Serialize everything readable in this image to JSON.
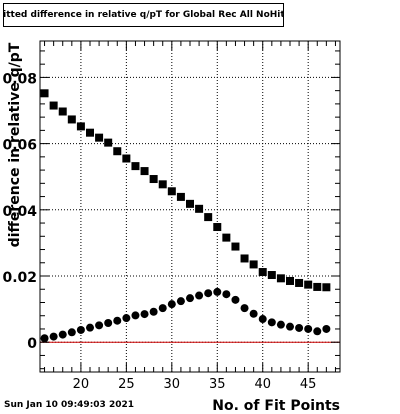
{
  "header": {
    "title": "Fitted difference in relative q/pT  for Global Rec All NoHits"
  },
  "footer": {
    "timestamp": "Sun Jan 10 09:49:03 2021"
  },
  "colors": {
    "axis": "#000000",
    "zero_line": "#cc0000",
    "markers": "#000000",
    "grid": "#000000"
  },
  "chart_data": {
    "type": "scatter",
    "title": "Fitted difference in relative q/pT  for Global Rec All NoHits",
    "xlabel": "No. of Fit Points",
    "ylabel": "difference in relative q/pT",
    "xlim": [
      15.5,
      48.5
    ],
    "ylim": [
      -0.009,
      0.091
    ],
    "x_ticks": [
      20,
      25,
      30,
      35,
      40,
      45
    ],
    "y_ticks": [
      0,
      0.02,
      0.04,
      0.06,
      0.08
    ],
    "y_tick_labels": [
      "0",
      "0.02",
      "0.04",
      "0.06",
      "0.08"
    ],
    "grid": true,
    "reference_line_y": 0,
    "series": [
      {
        "marker": "square",
        "x": [
          16,
          17,
          18,
          19,
          20,
          21,
          22,
          23,
          24,
          25,
          26,
          27,
          28,
          29,
          30,
          31,
          32,
          33,
          34,
          35,
          36,
          37,
          38,
          39,
          40,
          41,
          42,
          43,
          44,
          45,
          46,
          47
        ],
        "values": [
          0.0752,
          0.0715,
          0.0697,
          0.0673,
          0.0652,
          0.0633,
          0.0618,
          0.0603,
          0.0577,
          0.0555,
          0.0532,
          0.0517,
          0.0493,
          0.0477,
          0.0456,
          0.0439,
          0.0418,
          0.0403,
          0.0378,
          0.0348,
          0.0316,
          0.0289,
          0.0253,
          0.0235,
          0.0212,
          0.0203,
          0.0193,
          0.0185,
          0.0179,
          0.0174,
          0.0167,
          0.0166
        ]
      },
      {
        "marker": "circle",
        "x": [
          16,
          17,
          18,
          19,
          20,
          21,
          22,
          23,
          24,
          25,
          26,
          27,
          28,
          29,
          30,
          31,
          32,
          33,
          34,
          35,
          36,
          37,
          38,
          39,
          40,
          41,
          42,
          43,
          44,
          45,
          46,
          47
        ],
        "values": [
          0.0012,
          0.0017,
          0.0023,
          0.003,
          0.0037,
          0.0044,
          0.0051,
          0.0058,
          0.0065,
          0.0073,
          0.0081,
          0.0085,
          0.0092,
          0.0103,
          0.0115,
          0.0124,
          0.0133,
          0.0141,
          0.0148,
          0.0152,
          0.0145,
          0.0128,
          0.0103,
          0.0086,
          0.007,
          0.006,
          0.0053,
          0.0047,
          0.0043,
          0.004,
          0.0033,
          0.004
        ]
      }
    ]
  }
}
